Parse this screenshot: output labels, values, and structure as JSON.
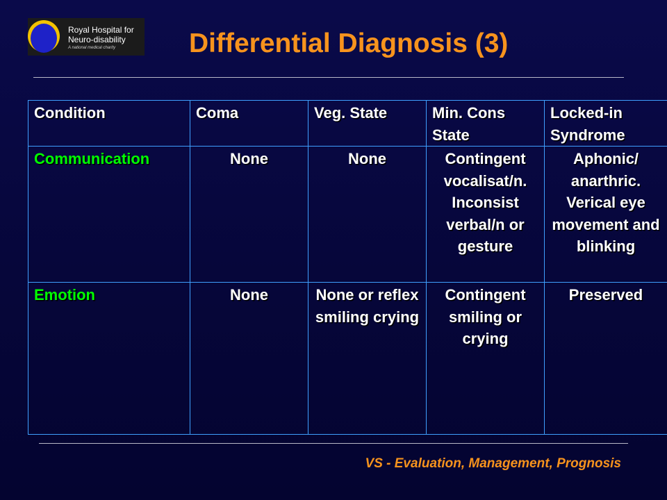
{
  "logo": {
    "line1": "Royal Hospital for",
    "line2": "Neuro-disability",
    "tagline": "A national medical charity"
  },
  "title": "Differential Diagnosis (3)",
  "table": {
    "header": [
      "Condition",
      "Coma",
      "Veg. State",
      "Min. Cons State",
      "Locked-in Syndrome"
    ],
    "rows": [
      {
        "label": "Communication",
        "cells": [
          "None",
          "None",
          "Contingent vocalisat/n. Inconsist verbal/n or gesture",
          "Aphonic/ anarthric. Verical eye movement and blinking"
        ]
      },
      {
        "label": "Emotion",
        "cells": [
          "None",
          "None or reflex smiling crying",
          "Contingent smiling or crying",
          "Preserved"
        ]
      }
    ]
  },
  "footer": "VS - Evaluation, Management, Prognosis",
  "colors": {
    "background": "#06063a",
    "title": "#f7931d",
    "row_label": "#00ff00",
    "cell_text": "#ffffff",
    "grid_line": "#3fa0ff"
  }
}
